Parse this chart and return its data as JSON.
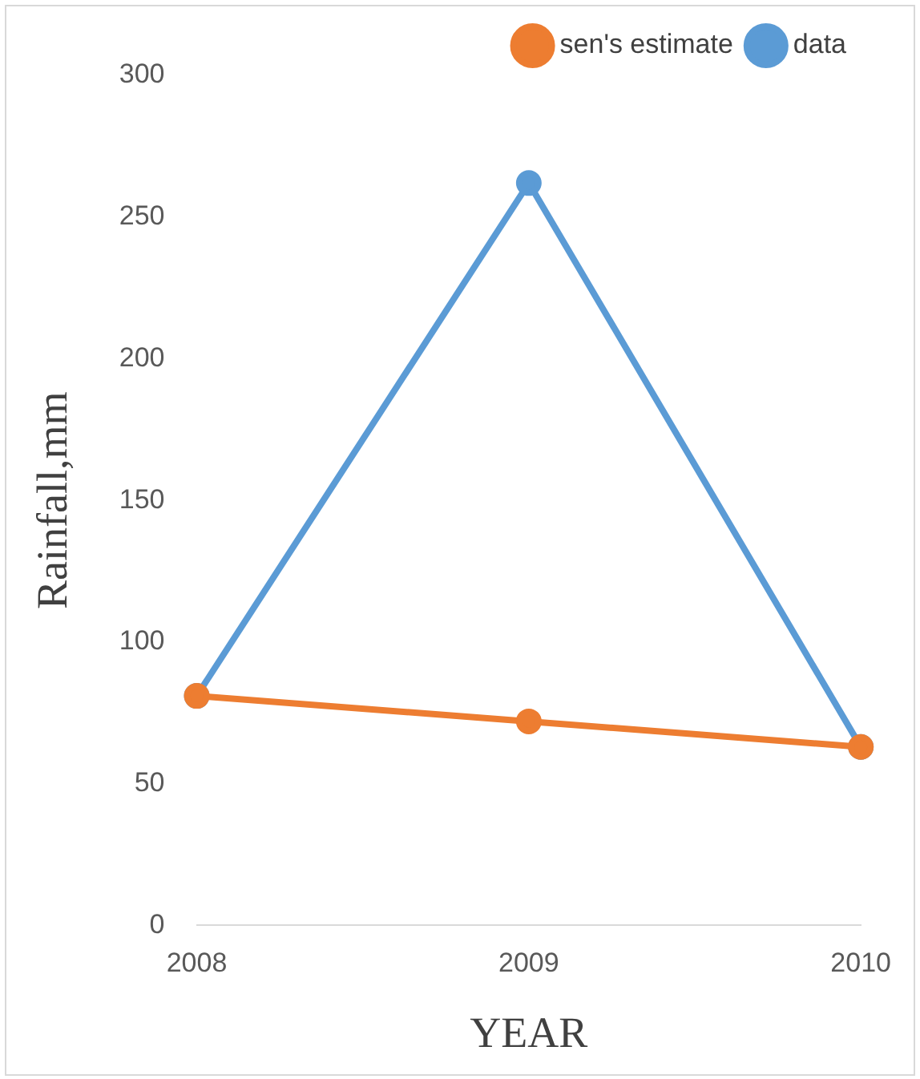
{
  "chart_data": {
    "type": "line",
    "xlabel": "YEAR",
    "ylabel": "Rainfall,mm",
    "categories": [
      "2008",
      "2009",
      "2010"
    ],
    "series": [
      {
        "name": "data",
        "color": "#5b9bd5",
        "values": [
          81,
          262,
          63
        ]
      },
      {
        "name": "sen's estimate",
        "color": "#ed7d31",
        "values": [
          81,
          72,
          63
        ]
      }
    ],
    "ylim": [
      0,
      300
    ],
    "yticks": [
      0,
      50,
      100,
      150,
      200,
      250,
      300
    ],
    "grid": false,
    "legend": "top right",
    "marker": "circle",
    "line_style": "solid"
  }
}
